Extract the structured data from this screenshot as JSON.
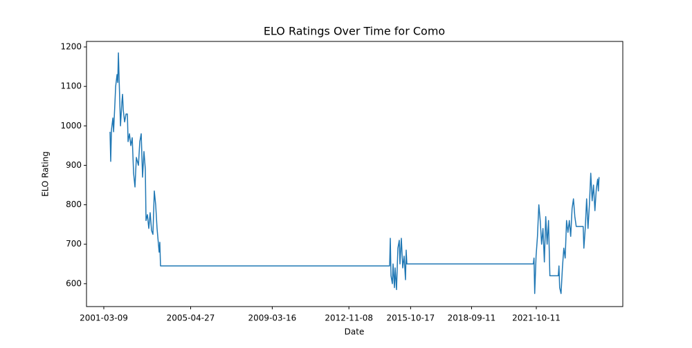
{
  "chart_data": {
    "type": "line",
    "title": "ELO Ratings Over Time for Como",
    "x_label": "Date",
    "y_label": "ELO Rating",
    "color": "#1f77b4",
    "grid": false,
    "x": [
      "2001-06-25",
      "2001-07-07",
      "2001-07-20",
      "2001-08-14",
      "2001-08-26",
      "2001-09-19",
      "2001-10-01",
      "2001-10-25",
      "2001-11-06",
      "2001-11-18",
      "2001-11-30",
      "2001-12-24",
      "2002-01-17",
      "2002-01-29",
      "2002-02-10",
      "2002-03-06",
      "2002-03-30",
      "2002-04-23",
      "2002-05-05",
      "2002-05-29",
      "2002-06-22",
      "2002-07-16",
      "2002-08-09",
      "2002-09-02",
      "2002-09-26",
      "2002-11-01",
      "2002-11-25",
      "2002-12-19",
      "2003-01-12",
      "2003-02-05",
      "2003-03-01",
      "2003-03-13",
      "2003-04-06",
      "2003-04-30",
      "2003-05-24",
      "2003-06-17",
      "2003-07-11",
      "2003-08-04",
      "2003-08-28",
      "2003-09-21",
      "2003-10-15",
      "2003-10-27",
      "2003-11-08",
      "2003-11-20",
      "2014-10-17",
      "2014-10-29",
      "2014-11-10",
      "2014-12-04",
      "2014-12-16",
      "2015-01-09",
      "2015-01-21",
      "2015-02-14",
      "2015-03-10",
      "2015-04-03",
      "2015-04-15",
      "2015-05-09",
      "2015-06-02",
      "2015-06-26",
      "2015-07-20",
      "2015-08-01",
      "2015-08-13",
      "2021-08-20",
      "2021-09-01",
      "2021-09-13",
      "2021-10-07",
      "2021-10-31",
      "2021-11-24",
      "2021-12-18",
      "2022-01-11",
      "2022-02-04",
      "2022-02-28",
      "2022-03-24",
      "2022-04-17",
      "2022-05-11",
      "2022-06-04",
      "2022-10-28",
      "2022-11-09",
      "2022-11-21",
      "2022-12-15",
      "2023-01-08",
      "2023-02-01",
      "2023-02-25",
      "2023-03-21",
      "2023-04-14",
      "2023-05-08",
      "2023-06-01",
      "2023-06-25",
      "2023-07-19",
      "2023-08-12",
      "2023-09-05",
      "2024-01-04",
      "2024-01-16",
      "2024-02-09",
      "2024-03-04",
      "2024-03-28",
      "2024-04-21",
      "2024-05-15",
      "2024-06-08",
      "2024-07-02",
      "2024-07-26",
      "2024-08-19",
      "2024-09-12",
      "2024-09-24",
      "2024-10-06"
    ],
    "values": [
      985,
      910,
      990,
      1020,
      985,
      1060,
      1100,
      1130,
      1110,
      1185,
      1120,
      1000,
      1060,
      1080,
      1040,
      1010,
      1030,
      1030,
      960,
      980,
      950,
      970,
      880,
      845,
      920,
      900,
      960,
      980,
      870,
      935,
      890,
      760,
      775,
      740,
      780,
      735,
      725,
      835,
      800,
      740,
      700,
      680,
      705,
      645,
      645,
      715,
      620,
      600,
      650,
      590,
      640,
      585,
      690,
      710,
      650,
      715,
      640,
      670,
      610,
      685,
      650,
      650,
      665,
      575,
      670,
      720,
      800,
      760,
      700,
      740,
      655,
      770,
      700,
      760,
      620,
      620,
      645,
      590,
      575,
      640,
      690,
      665,
      760,
      730,
      760,
      720,
      790,
      815,
      770,
      745,
      745,
      690,
      740,
      815,
      740,
      800,
      880,
      810,
      850,
      785,
      840,
      865,
      835,
      870
    ],
    "xlim": [
      "2000-05-12",
      "2025-11-23"
    ],
    "xticks": [
      "2001-03-09",
      "2005-04-27",
      "2009-03-16",
      "2012-11-08",
      "2015-10-17",
      "2018-09-11",
      "2021-10-11"
    ],
    "ylim": [
      542,
      1214
    ],
    "yticks": [
      600,
      700,
      800,
      900,
      1000,
      1100,
      1200
    ]
  }
}
